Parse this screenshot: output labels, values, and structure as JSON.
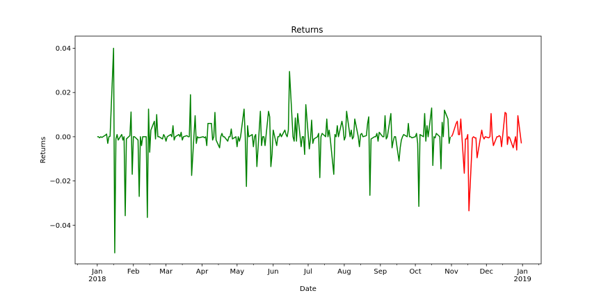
{
  "chart_data": {
    "type": "line",
    "title": "Returns",
    "xlabel": "Date",
    "ylabel": "Returns",
    "xlim": [
      "2017-12-13",
      "2019-01-17"
    ],
    "ylim": [
      -0.0575,
      0.0455
    ],
    "grid": false,
    "x_ticks": [
      {
        "date": "2018-01-01",
        "label": "Jan",
        "sublabel": "2018"
      },
      {
        "date": "2018-02-01",
        "label": "Feb",
        "sublabel": ""
      },
      {
        "date": "2018-03-01",
        "label": "Mar",
        "sublabel": ""
      },
      {
        "date": "2018-04-01",
        "label": "Apr",
        "sublabel": ""
      },
      {
        "date": "2018-05-01",
        "label": "May",
        "sublabel": ""
      },
      {
        "date": "2018-06-01",
        "label": "Jun",
        "sublabel": ""
      },
      {
        "date": "2018-07-01",
        "label": "Jul",
        "sublabel": ""
      },
      {
        "date": "2018-08-01",
        "label": "Aug",
        "sublabel": ""
      },
      {
        "date": "2018-09-01",
        "label": "Sep",
        "sublabel": ""
      },
      {
        "date": "2018-10-01",
        "label": "Oct",
        "sublabel": ""
      },
      {
        "date": "2018-11-01",
        "label": "Nov",
        "sublabel": ""
      },
      {
        "date": "2018-12-01",
        "label": "Dec",
        "sublabel": ""
      },
      {
        "date": "2019-01-01",
        "label": "Jan",
        "sublabel": "2019"
      }
    ],
    "y_ticks": [
      {
        "value": 0.04,
        "label": "0.04"
      },
      {
        "value": 0.02,
        "label": "0.02"
      },
      {
        "value": 0.0,
        "label": "0.00"
      },
      {
        "value": -0.02,
        "label": "−0.02"
      },
      {
        "value": -0.04,
        "label": "−0.04"
      }
    ],
    "series": [
      {
        "color": "#008000",
        "points": [
          [
            "2018-01-01",
            0.0
          ],
          [
            "2018-01-02",
            0.0
          ],
          [
            "2018-01-03",
            -0.0005
          ],
          [
            "2018-01-04",
            0.0
          ],
          [
            "2018-01-05",
            -0.0003
          ],
          [
            "2018-01-08",
            0.0007
          ],
          [
            "2018-01-09",
            0.0012
          ],
          [
            "2018-01-10",
            -0.003
          ],
          [
            "2018-01-11",
            0.0
          ],
          [
            "2018-01-12",
            0.0002
          ],
          [
            "2018-01-15",
            0.04
          ],
          [
            "2018-01-16",
            -0.0525
          ],
          [
            "2018-01-17",
            -0.001
          ],
          [
            "2018-01-18",
            0.001
          ],
          [
            "2018-01-19",
            -0.0015
          ],
          [
            "2018-01-22",
            0.001
          ],
          [
            "2018-01-23",
            -0.0015
          ],
          [
            "2018-01-24",
            0.0
          ],
          [
            "2018-01-25",
            -0.0357
          ],
          [
            "2018-01-26",
            -0.001
          ],
          [
            "2018-01-29",
            0.0005
          ],
          [
            "2018-01-30",
            0.0112
          ],
          [
            "2018-01-31",
            -0.017
          ],
          [
            "2018-02-01",
            0.0
          ],
          [
            "2018-02-02",
            0.0
          ],
          [
            "2018-02-05",
            -0.0015
          ],
          [
            "2018-02-06",
            -0.027
          ],
          [
            "2018-02-07",
            0.0
          ],
          [
            "2018-02-08",
            -0.004
          ],
          [
            "2018-02-09",
            0.0
          ],
          [
            "2018-02-12",
            0.0
          ],
          [
            "2018-02-13",
            -0.0365
          ],
          [
            "2018-02-14",
            0.0125
          ],
          [
            "2018-02-15",
            -0.007
          ],
          [
            "2018-02-16",
            0.003
          ],
          [
            "2018-02-19",
            0.007
          ],
          [
            "2018-02-20",
            -0.001
          ],
          [
            "2018-02-21",
            0.01
          ],
          [
            "2018-02-22",
            0.0
          ],
          [
            "2018-02-23",
            0.0
          ],
          [
            "2018-02-26",
            -0.001
          ],
          [
            "2018-02-27",
            0.001
          ],
          [
            "2018-02-28",
            0.0
          ],
          [
            "2018-03-01",
            -0.002
          ],
          [
            "2018-03-02",
            0.0
          ],
          [
            "2018-03-05",
            0.001
          ],
          [
            "2018-03-06",
            0.0
          ],
          [
            "2018-03-07",
            0.005
          ],
          [
            "2018-03-08",
            -0.0015
          ],
          [
            "2018-03-09",
            0.0
          ],
          [
            "2018-03-12",
            0.001
          ],
          [
            "2018-03-13",
            0.0
          ],
          [
            "2018-03-14",
            0.002
          ],
          [
            "2018-03-15",
            -0.0015
          ],
          [
            "2018-03-16",
            0.0
          ],
          [
            "2018-03-19",
            0.0005
          ],
          [
            "2018-03-20",
            0.0
          ],
          [
            "2018-03-21",
            0.0
          ],
          [
            "2018-03-22",
            0.019
          ],
          [
            "2018-03-23",
            -0.0175
          ],
          [
            "2018-03-26",
            0.0095
          ],
          [
            "2018-03-27",
            -0.003
          ],
          [
            "2018-03-28",
            0.0
          ],
          [
            "2018-03-29",
            -0.0005
          ],
          [
            "2018-04-02",
            0.0
          ],
          [
            "2018-04-03",
            -0.0005
          ],
          [
            "2018-04-04",
            0.0
          ],
          [
            "2018-04-05",
            -0.004
          ],
          [
            "2018-04-06",
            0.006
          ],
          [
            "2018-04-09",
            0.006
          ],
          [
            "2018-04-10",
            -0.0015
          ],
          [
            "2018-04-11",
            0.0
          ],
          [
            "2018-04-12",
            0.011
          ],
          [
            "2018-04-13",
            -0.0015
          ],
          [
            "2018-04-16",
            -0.005
          ],
          [
            "2018-04-17",
            0.0
          ],
          [
            "2018-04-18",
            0.0015
          ],
          [
            "2018-04-19",
            0.0
          ],
          [
            "2018-04-20",
            0.0
          ],
          [
            "2018-04-23",
            -0.002
          ],
          [
            "2018-04-24",
            0.0
          ],
          [
            "2018-04-25",
            0.0
          ],
          [
            "2018-04-26",
            0.0035
          ],
          [
            "2018-04-27",
            -0.001
          ],
          [
            "2018-04-30",
            0.0
          ],
          [
            "2018-05-01",
            -0.0045
          ],
          [
            "2018-05-02",
            0.0
          ],
          [
            "2018-05-03",
            -0.002
          ],
          [
            "2018-05-04",
            0.0
          ],
          [
            "2018-05-07",
            0.0125
          ],
          [
            "2018-05-08",
            0.0
          ],
          [
            "2018-05-09",
            -0.0225
          ],
          [
            "2018-05-10",
            0.005
          ],
          [
            "2018-05-11",
            0.0
          ],
          [
            "2018-05-14",
            0.001
          ],
          [
            "2018-05-15",
            -0.0045
          ],
          [
            "2018-05-16",
            0.0
          ],
          [
            "2018-05-17",
            0.001
          ],
          [
            "2018-05-18",
            -0.0135
          ],
          [
            "2018-05-21",
            0.0115
          ],
          [
            "2018-05-22",
            -0.004
          ],
          [
            "2018-05-23",
            0.0
          ],
          [
            "2018-05-24",
            0.0
          ],
          [
            "2018-05-25",
            -0.004
          ],
          [
            "2018-05-28",
            0.0115
          ],
          [
            "2018-05-29",
            0.009
          ],
          [
            "2018-05-30",
            -0.0135
          ],
          [
            "2018-05-31",
            -0.008
          ],
          [
            "2018-06-01",
            0.003
          ],
          [
            "2018-06-04",
            -0.004
          ],
          [
            "2018-06-05",
            0.0
          ],
          [
            "2018-06-06",
            0.0
          ],
          [
            "2018-06-07",
            0.0015
          ],
          [
            "2018-06-08",
            0.0
          ],
          [
            "2018-06-11",
            0.003
          ],
          [
            "2018-06-12",
            0.001
          ],
          [
            "2018-06-13",
            0.0
          ],
          [
            "2018-06-14",
            0.003
          ],
          [
            "2018-06-15",
            0.0295
          ],
          [
            "2018-06-18",
            0.0
          ],
          [
            "2018-06-19",
            -0.002
          ],
          [
            "2018-06-20",
            0.0085
          ],
          [
            "2018-06-21",
            -0.002
          ],
          [
            "2018-06-22",
            0.0105
          ],
          [
            "2018-06-25",
            -0.0045
          ],
          [
            "2018-06-26",
            0.0
          ],
          [
            "2018-06-27",
            0.0
          ],
          [
            "2018-06-28",
            -0.008
          ],
          [
            "2018-06-29",
            0.0145
          ],
          [
            "2018-07-02",
            -0.0055
          ],
          [
            "2018-07-03",
            -0.001
          ],
          [
            "2018-07-04",
            0.0075
          ],
          [
            "2018-07-05",
            -0.003
          ],
          [
            "2018-07-06",
            -0.001
          ],
          [
            "2018-07-09",
            0.0
          ],
          [
            "2018-07-10",
            0.0015
          ],
          [
            "2018-07-11",
            -0.0185
          ],
          [
            "2018-07-12",
            0.0
          ],
          [
            "2018-07-13",
            0.0015
          ],
          [
            "2018-07-16",
            0.0
          ],
          [
            "2018-07-17",
            0.008
          ],
          [
            "2018-07-18",
            0.0
          ],
          [
            "2018-07-19",
            0.003
          ],
          [
            "2018-07-20",
            -0.001
          ],
          [
            "2018-07-23",
            -0.017
          ],
          [
            "2018-07-24",
            0.001
          ],
          [
            "2018-07-25",
            0.0
          ],
          [
            "2018-07-26",
            0.005
          ],
          [
            "2018-07-27",
            0.0
          ],
          [
            "2018-07-30",
            0.007
          ],
          [
            "2018-07-31",
            0.004
          ],
          [
            "2018-08-01",
            -0.0015
          ],
          [
            "2018-08-02",
            0.0
          ],
          [
            "2018-08-03",
            0.0115
          ],
          [
            "2018-08-06",
            0.0
          ],
          [
            "2018-08-07",
            0.003
          ],
          [
            "2018-08-08",
            -0.001
          ],
          [
            "2018-08-09",
            0.0
          ],
          [
            "2018-08-10",
            0.008
          ],
          [
            "2018-08-13",
            0.0
          ],
          [
            "2018-08-14",
            -0.0045
          ],
          [
            "2018-08-15",
            0.001
          ],
          [
            "2018-08-16",
            0.0015
          ],
          [
            "2018-08-17",
            0.0
          ],
          [
            "2018-08-20",
            0.0005
          ],
          [
            "2018-08-21",
            0.006
          ],
          [
            "2018-08-22",
            0.009
          ],
          [
            "2018-08-23",
            -0.0265
          ],
          [
            "2018-08-24",
            -0.001
          ],
          [
            "2018-08-27",
            0.0
          ],
          [
            "2018-08-28",
            0.0
          ],
          [
            "2018-08-29",
            0.0015
          ],
          [
            "2018-08-30",
            -0.002
          ],
          [
            "2018-08-31",
            0.002
          ],
          [
            "2018-09-03",
            0.0
          ],
          [
            "2018-09-04",
            0.0
          ],
          [
            "2018-09-05",
            0.0095
          ],
          [
            "2018-09-06",
            -0.001
          ],
          [
            "2018-09-07",
            0.0
          ],
          [
            "2018-09-10",
            0.0105
          ],
          [
            "2018-09-11",
            -0.005
          ],
          [
            "2018-09-12",
            -0.002
          ],
          [
            "2018-09-13",
            0.0
          ],
          [
            "2018-09-14",
            0.0
          ],
          [
            "2018-09-17",
            -0.011
          ],
          [
            "2018-09-18",
            -0.005
          ],
          [
            "2018-09-19",
            -0.0015
          ],
          [
            "2018-09-20",
            0.0
          ],
          [
            "2018-09-21",
            0.001
          ],
          [
            "2018-09-24",
            0.0
          ],
          [
            "2018-09-25",
            0.006
          ],
          [
            "2018-09-26",
            0.0
          ],
          [
            "2018-09-27",
            0.0
          ],
          [
            "2018-09-28",
            -0.0005
          ],
          [
            "2018-10-01",
            0.0
          ],
          [
            "2018-10-02",
            0.0015
          ],
          [
            "2018-10-03",
            -0.003
          ],
          [
            "2018-10-04",
            -0.0315
          ],
          [
            "2018-10-05",
            0.001
          ],
          [
            "2018-10-08",
            0.0
          ],
          [
            "2018-10-09",
            0.0105
          ],
          [
            "2018-10-10",
            -0.002
          ],
          [
            "2018-10-11",
            0.005
          ],
          [
            "2018-10-12",
            0.0
          ],
          [
            "2018-10-15",
            0.013
          ],
          [
            "2018-10-16",
            -0.013
          ],
          [
            "2018-10-17",
            0.0
          ],
          [
            "2018-10-18",
            -0.0005
          ],
          [
            "2018-10-19",
            0.0015
          ],
          [
            "2018-10-22",
            0.0
          ],
          [
            "2018-10-23",
            -0.0145
          ],
          [
            "2018-10-24",
            0.0065
          ],
          [
            "2018-10-25",
            0.0
          ],
          [
            "2018-10-26",
            0.012
          ],
          [
            "2018-10-29",
            0.008
          ],
          [
            "2018-10-30",
            -0.003
          ],
          [
            "2018-10-31",
            0.0
          ]
        ]
      },
      {
        "color": "#ff0000",
        "points": [
          [
            "2018-11-01",
            0.0
          ],
          [
            "2018-11-02",
            0.001
          ],
          [
            "2018-11-05",
            0.006
          ],
          [
            "2018-11-06",
            0.007
          ],
          [
            "2018-11-07",
            0.001
          ],
          [
            "2018-11-08",
            0.001
          ],
          [
            "2018-11-09",
            0.008
          ],
          [
            "2018-11-12",
            -0.0165
          ],
          [
            "2018-11-13",
            -0.001
          ],
          [
            "2018-11-14",
            -0.001
          ],
          [
            "2018-11-15",
            0.001
          ],
          [
            "2018-11-16",
            -0.0335
          ],
          [
            "2018-11-19",
            -0.0005
          ],
          [
            "2018-11-20",
            0.0
          ],
          [
            "2018-11-21",
            -0.0005
          ],
          [
            "2018-11-22",
            -0.0005
          ],
          [
            "2018-11-23",
            -0.0095
          ],
          [
            "2018-11-26",
            0.0
          ],
          [
            "2018-11-27",
            0.003
          ],
          [
            "2018-11-28",
            0.0
          ],
          [
            "2018-11-29",
            -0.001
          ],
          [
            "2018-11-30",
            0.0
          ],
          [
            "2018-12-03",
            -0.0005
          ],
          [
            "2018-12-04",
            0.0
          ],
          [
            "2018-12-05",
            0.0105
          ],
          [
            "2018-12-06",
            0.0
          ],
          [
            "2018-12-07",
            -0.004
          ],
          [
            "2018-12-10",
            0.0
          ],
          [
            "2018-12-11",
            0.0
          ],
          [
            "2018-12-12",
            0.0005
          ],
          [
            "2018-12-13",
            0.0
          ],
          [
            "2018-12-14",
            -0.0045
          ],
          [
            "2018-12-17",
            0.011
          ],
          [
            "2018-12-18",
            0.0105
          ],
          [
            "2018-12-19",
            -0.0035
          ],
          [
            "2018-12-20",
            0.0
          ],
          [
            "2018-12-21",
            -0.0005
          ],
          [
            "2018-12-24",
            -0.005
          ],
          [
            "2018-12-26",
            0.0
          ],
          [
            "2018-12-27",
            -0.006
          ],
          [
            "2018-12-28",
            0.0095
          ],
          [
            "2018-12-31",
            -0.003
          ]
        ]
      }
    ]
  }
}
